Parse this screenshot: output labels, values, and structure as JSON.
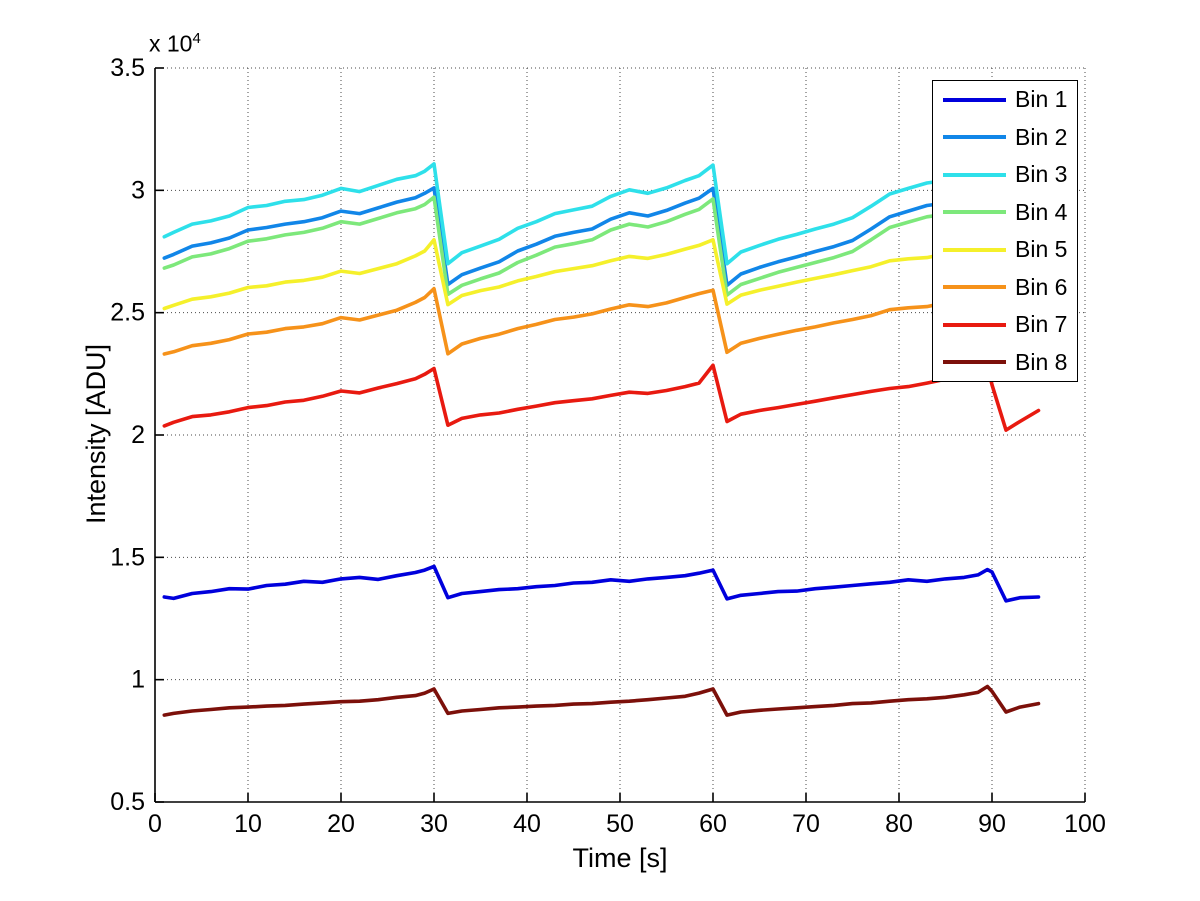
{
  "figure": {
    "x_axis_label": "Time [s]",
    "y_axis_label": "Intensity [ADU]",
    "y_exponent_label": "x 10",
    "y_exponent_value": "4",
    "background_color": "#ffffff",
    "axis_color": "#000000",
    "grid_style": "dotted"
  },
  "chart_data": {
    "type": "line",
    "title": "",
    "xlabel": "Time [s]",
    "ylabel": "Intensity [ADU]",
    "y_unit_multiplier_label": "x 10^4",
    "xlim": [
      0,
      100
    ],
    "ylim_e4": [
      0.5,
      3.5
    ],
    "grid": "on",
    "legend_position": "northeast",
    "xticks": [
      {
        "v": 0,
        "label": "0"
      },
      {
        "v": 10,
        "label": "10"
      },
      {
        "v": 20,
        "label": "20"
      },
      {
        "v": 30,
        "label": "30"
      },
      {
        "v": 40,
        "label": "40"
      },
      {
        "v": 50,
        "label": "50"
      },
      {
        "v": 60,
        "label": "60"
      },
      {
        "v": 70,
        "label": "70"
      },
      {
        "v": 80,
        "label": "80"
      },
      {
        "v": 90,
        "label": "90"
      },
      {
        "v": 100,
        "label": "100"
      }
    ],
    "yticks": [
      {
        "v": 0.5,
        "label": "0.5"
      },
      {
        "v": 1,
        "label": "1"
      },
      {
        "v": 1.5,
        "label": "1.5"
      },
      {
        "v": 2,
        "label": "2"
      },
      {
        "v": 2.5,
        "label": "2.5"
      },
      {
        "v": 3,
        "label": "3"
      },
      {
        "v": 3.5,
        "label": "3.5"
      }
    ],
    "t": [
      1,
      2,
      4,
      6,
      8,
      10,
      12,
      14,
      16,
      18,
      20,
      22,
      24,
      26,
      28,
      29,
      30,
      31.5,
      33,
      35,
      37,
      39,
      41,
      43,
      45,
      47,
      49,
      51,
      53,
      55,
      57,
      58.5,
      60,
      61.5,
      63,
      65,
      67,
      69,
      71,
      73,
      75,
      77,
      79,
      81,
      83,
      85,
      87,
      88.5,
      89.5,
      90,
      91.5,
      93,
      95
    ],
    "series": [
      {
        "name": "Bin 1",
        "color": "#0000DC",
        "values_x1e4": [
          1.338,
          1.332,
          1.352,
          1.36,
          1.372,
          1.37,
          1.385,
          1.39,
          1.402,
          1.398,
          1.412,
          1.418,
          1.41,
          1.425,
          1.438,
          1.448,
          1.463,
          1.335,
          1.352,
          1.36,
          1.368,
          1.372,
          1.38,
          1.385,
          1.395,
          1.398,
          1.408,
          1.402,
          1.412,
          1.418,
          1.425,
          1.435,
          1.448,
          1.33,
          1.345,
          1.352,
          1.36,
          1.362,
          1.372,
          1.378,
          1.385,
          1.392,
          1.398,
          1.408,
          1.402,
          1.412,
          1.418,
          1.428,
          1.45,
          1.44,
          1.322,
          1.335,
          1.338
        ]
      },
      {
        "name": "Bin 2",
        "color": "#1186E8",
        "values_x1e4": [
          2.723,
          2.738,
          2.772,
          2.785,
          2.805,
          2.838,
          2.848,
          2.862,
          2.872,
          2.888,
          2.915,
          2.905,
          2.928,
          2.952,
          2.97,
          2.988,
          3.01,
          2.615,
          2.655,
          2.682,
          2.708,
          2.752,
          2.78,
          2.812,
          2.828,
          2.842,
          2.882,
          2.908,
          2.895,
          2.918,
          2.948,
          2.968,
          3.008,
          2.612,
          2.658,
          2.685,
          2.708,
          2.728,
          2.75,
          2.77,
          2.795,
          2.842,
          2.892,
          2.915,
          2.938,
          2.948,
          2.958,
          2.972,
          2.995,
          2.968,
          2.598,
          2.642,
          2.668
        ]
      },
      {
        "name": "Bin 3",
        "color": "#2EE0EA",
        "values_x1e4": [
          2.81,
          2.828,
          2.862,
          2.875,
          2.895,
          2.93,
          2.938,
          2.955,
          2.962,
          2.98,
          3.008,
          2.995,
          3.02,
          3.045,
          3.06,
          3.078,
          3.108,
          2.7,
          2.745,
          2.772,
          2.8,
          2.845,
          2.872,
          2.905,
          2.92,
          2.935,
          2.975,
          3.002,
          2.988,
          3.01,
          3.04,
          3.06,
          3.103,
          2.7,
          2.748,
          2.775,
          2.8,
          2.82,
          2.842,
          2.862,
          2.888,
          2.935,
          2.985,
          3.008,
          3.03,
          3.04,
          3.052,
          3.065,
          3.088,
          3.06,
          2.69,
          2.735,
          2.76
        ]
      },
      {
        "name": "Bin 4",
        "color": "#7DE87B",
        "values_x1e4": [
          2.682,
          2.695,
          2.728,
          2.74,
          2.762,
          2.792,
          2.802,
          2.818,
          2.828,
          2.845,
          2.872,
          2.862,
          2.885,
          2.908,
          2.925,
          2.942,
          2.972,
          2.575,
          2.612,
          2.638,
          2.662,
          2.705,
          2.735,
          2.768,
          2.782,
          2.798,
          2.838,
          2.862,
          2.85,
          2.872,
          2.902,
          2.922,
          2.965,
          2.572,
          2.615,
          2.64,
          2.665,
          2.685,
          2.705,
          2.725,
          2.75,
          2.798,
          2.848,
          2.87,
          2.892,
          2.902,
          2.912,
          2.925,
          2.948,
          2.922,
          2.555,
          2.598,
          2.622
        ]
      },
      {
        "name": "Bin 5",
        "color": "#F5F02B",
        "values_x1e4": [
          2.517,
          2.53,
          2.555,
          2.565,
          2.58,
          2.603,
          2.61,
          2.625,
          2.632,
          2.645,
          2.67,
          2.66,
          2.68,
          2.7,
          2.732,
          2.752,
          2.798,
          2.533,
          2.57,
          2.59,
          2.605,
          2.63,
          2.648,
          2.668,
          2.68,
          2.692,
          2.712,
          2.73,
          2.722,
          2.738,
          2.76,
          2.775,
          2.798,
          2.535,
          2.572,
          2.592,
          2.608,
          2.625,
          2.64,
          2.655,
          2.672,
          2.688,
          2.712,
          2.72,
          2.725,
          2.74,
          2.755,
          2.768,
          2.792,
          2.77,
          2.528,
          2.562,
          2.585
        ]
      },
      {
        "name": "Bin 6",
        "color": "#F6921A",
        "values_x1e4": [
          2.331,
          2.34,
          2.365,
          2.375,
          2.39,
          2.413,
          2.42,
          2.435,
          2.442,
          2.455,
          2.48,
          2.47,
          2.49,
          2.51,
          2.542,
          2.562,
          2.598,
          2.332,
          2.372,
          2.395,
          2.412,
          2.435,
          2.452,
          2.472,
          2.482,
          2.495,
          2.515,
          2.532,
          2.525,
          2.54,
          2.562,
          2.578,
          2.592,
          2.338,
          2.375,
          2.395,
          2.412,
          2.428,
          2.442,
          2.458,
          2.472,
          2.488,
          2.512,
          2.52,
          2.525,
          2.54,
          2.555,
          2.568,
          2.59,
          2.57,
          2.33,
          2.362,
          2.385
        ]
      },
      {
        "name": "Bin 7",
        "color": "#E81A10",
        "values_x1e4": [
          2.037,
          2.052,
          2.075,
          2.082,
          2.095,
          2.112,
          2.12,
          2.135,
          2.142,
          2.158,
          2.18,
          2.172,
          2.192,
          2.21,
          2.23,
          2.248,
          2.272,
          2.04,
          2.068,
          2.082,
          2.09,
          2.105,
          2.118,
          2.132,
          2.14,
          2.148,
          2.162,
          2.175,
          2.17,
          2.182,
          2.198,
          2.212,
          2.285,
          2.055,
          2.085,
          2.1,
          2.112,
          2.125,
          2.138,
          2.152,
          2.165,
          2.178,
          2.19,
          2.198,
          2.212,
          2.228,
          2.248,
          2.262,
          2.285,
          2.205,
          2.02,
          2.055,
          2.1
        ]
      },
      {
        "name": "Bin 8",
        "color": "#7C100A",
        "values_x1e4": [
          0.855,
          0.862,
          0.872,
          0.878,
          0.885,
          0.888,
          0.892,
          0.895,
          0.9,
          0.905,
          0.91,
          0.912,
          0.918,
          0.928,
          0.935,
          0.945,
          0.962,
          0.862,
          0.872,
          0.878,
          0.885,
          0.888,
          0.892,
          0.895,
          0.9,
          0.902,
          0.908,
          0.912,
          0.918,
          0.925,
          0.932,
          0.945,
          0.962,
          0.855,
          0.868,
          0.875,
          0.88,
          0.885,
          0.89,
          0.895,
          0.902,
          0.905,
          0.912,
          0.918,
          0.922,
          0.928,
          0.938,
          0.948,
          0.972,
          0.952,
          0.868,
          0.888,
          0.902
        ]
      }
    ]
  }
}
